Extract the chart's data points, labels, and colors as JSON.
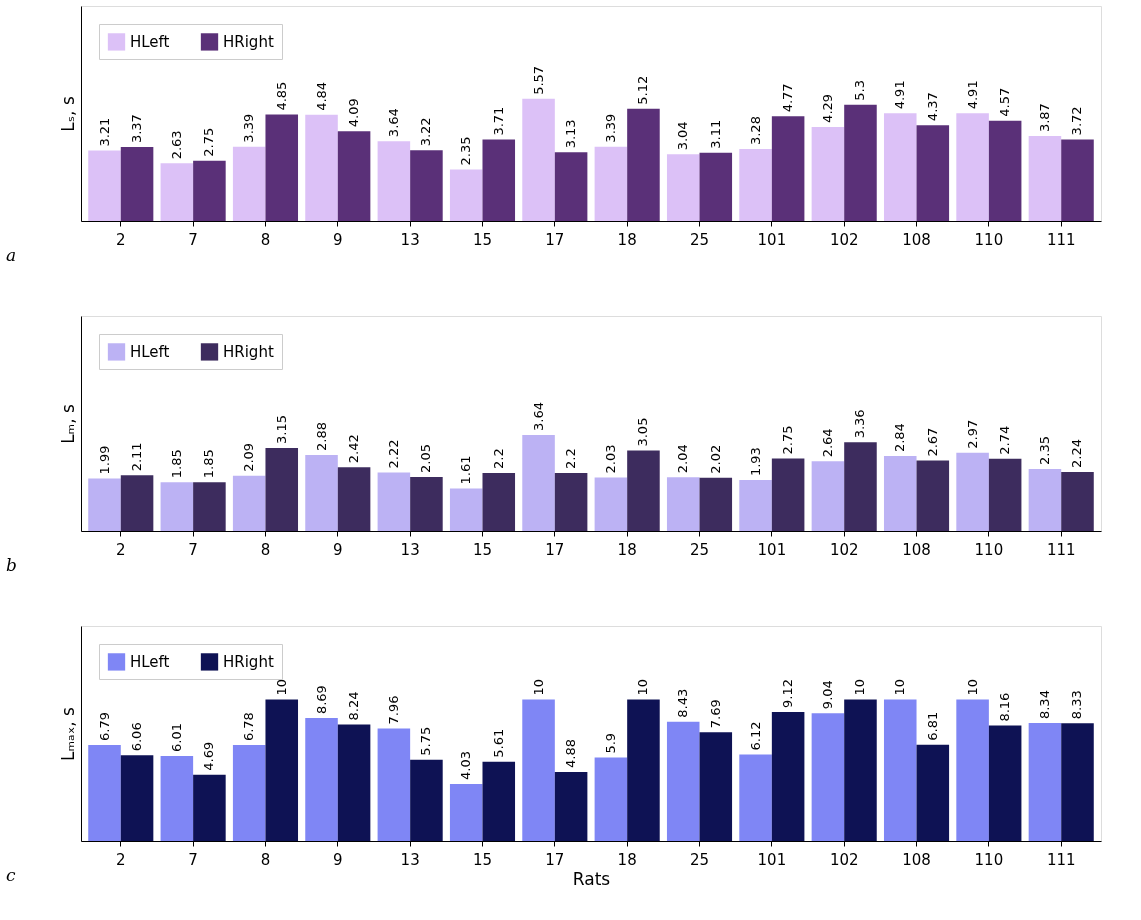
{
  "chart_data": [
    {
      "type": "bar",
      "ylabel": "Lₛ, s",
      "categories": [
        "2",
        "7",
        "8",
        "9",
        "13",
        "15",
        "17",
        "18",
        "25",
        "101",
        "102",
        "108",
        "110",
        "111"
      ],
      "ylim": [
        0,
        9.8
      ],
      "tick_labels": "x",
      "legend": "top left",
      "data_labels": true,
      "annotations": [
        "a"
      ],
      "series": [
        {
          "name": "HLeft",
          "color": "#dcc1f7",
          "values": [
            3.21,
            2.63,
            3.39,
            4.84,
            3.64,
            2.35,
            5.57,
            3.39,
            3.04,
            3.28,
            4.29,
            4.91,
            4.91,
            3.87
          ]
        },
        {
          "name": "HRight",
          "color": "#5a3078",
          "values": [
            3.37,
            2.75,
            4.85,
            4.09,
            3.22,
            3.71,
            3.13,
            5.12,
            3.11,
            4.77,
            5.3,
            4.37,
            4.57,
            3.72
          ]
        }
      ]
    },
    {
      "type": "bar",
      "ylabel": "Lₘ, s",
      "categories": [
        "2",
        "7",
        "8",
        "9",
        "13",
        "15",
        "17",
        "18",
        "25",
        "101",
        "102",
        "108",
        "110",
        "111"
      ],
      "ylim": [
        0,
        8.15
      ],
      "tick_labels": "x",
      "legend": "top left",
      "data_labels": true,
      "annotations": [
        "b"
      ],
      "series": [
        {
          "name": "HLeft",
          "color": "#bcb2f4",
          "values": [
            1.99,
            1.85,
            2.09,
            2.88,
            2.22,
            1.61,
            3.64,
            2.03,
            2.04,
            1.93,
            2.64,
            2.84,
            2.97,
            2.35
          ]
        },
        {
          "name": "HRight",
          "color": "#3d2c5e",
          "values": [
            2.11,
            1.85,
            3.15,
            2.42,
            2.05,
            2.2,
            2.2,
            3.05,
            2.02,
            2.75,
            3.36,
            2.67,
            2.74,
            2.24
          ]
        }
      ]
    },
    {
      "type": "bar",
      "xlabel": "Rats",
      "ylabel": "Lₘₐₓ, s",
      "categories": [
        "2",
        "7",
        "8",
        "9",
        "13",
        "15",
        "17",
        "18",
        "25",
        "101",
        "102",
        "108",
        "110",
        "111"
      ],
      "ylim": [
        0,
        15.2
      ],
      "tick_labels": "x",
      "legend": "top left",
      "data_labels": true,
      "annotations": [
        "c"
      ],
      "series": [
        {
          "name": "HLeft",
          "color": "#7f86f5",
          "values": [
            6.79,
            6.01,
            6.78,
            8.69,
            7.96,
            4.03,
            10,
            5.9,
            8.43,
            6.12,
            9.04,
            10,
            10,
            8.34
          ]
        },
        {
          "name": "HRight",
          "color": "#0e1254",
          "values": [
            6.06,
            4.69,
            10,
            8.24,
            5.75,
            5.61,
            4.88,
            10,
            7.69,
            9.12,
            10,
            6.81,
            8.16,
            8.33
          ]
        }
      ]
    }
  ]
}
